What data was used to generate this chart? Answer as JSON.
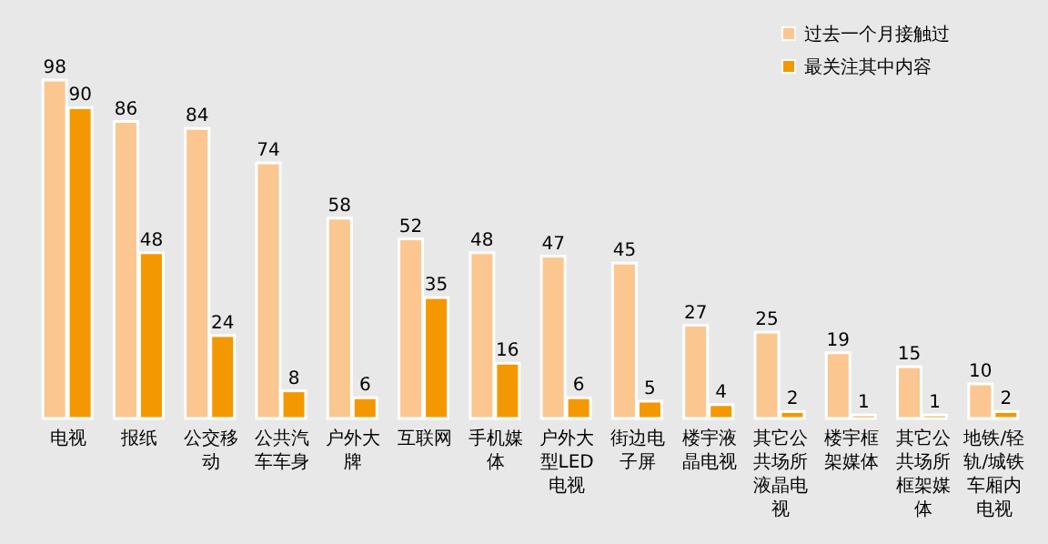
{
  "chart_data": {
    "type": "bar",
    "categories": [
      "电视",
      "报纸",
      "公交移动",
      "公共汽车车身",
      "户外大牌",
      "互联网",
      "手机媒体",
      "户外大型LED电视",
      "街边电子屏",
      "楼宇液晶电视",
      "其它公共场所液晶电视",
      "楼宇框架媒体",
      "其它公共场所框架媒体",
      "地铁/轻轨/城铁车厢内电视"
    ],
    "series": [
      {
        "name": "过去一个月接触过",
        "color": "#fcc690",
        "values": [
          98,
          86,
          84,
          74,
          58,
          52,
          48,
          47,
          45,
          27,
          25,
          19,
          15,
          10
        ]
      },
      {
        "name": "最关注其中内容",
        "color": "#f39800",
        "values": [
          90,
          48,
          24,
          8,
          6,
          35,
          16,
          6,
          5,
          4,
          2,
          1,
          1,
          2
        ]
      }
    ],
    "data_labels": true,
    "legend": "top right"
  }
}
